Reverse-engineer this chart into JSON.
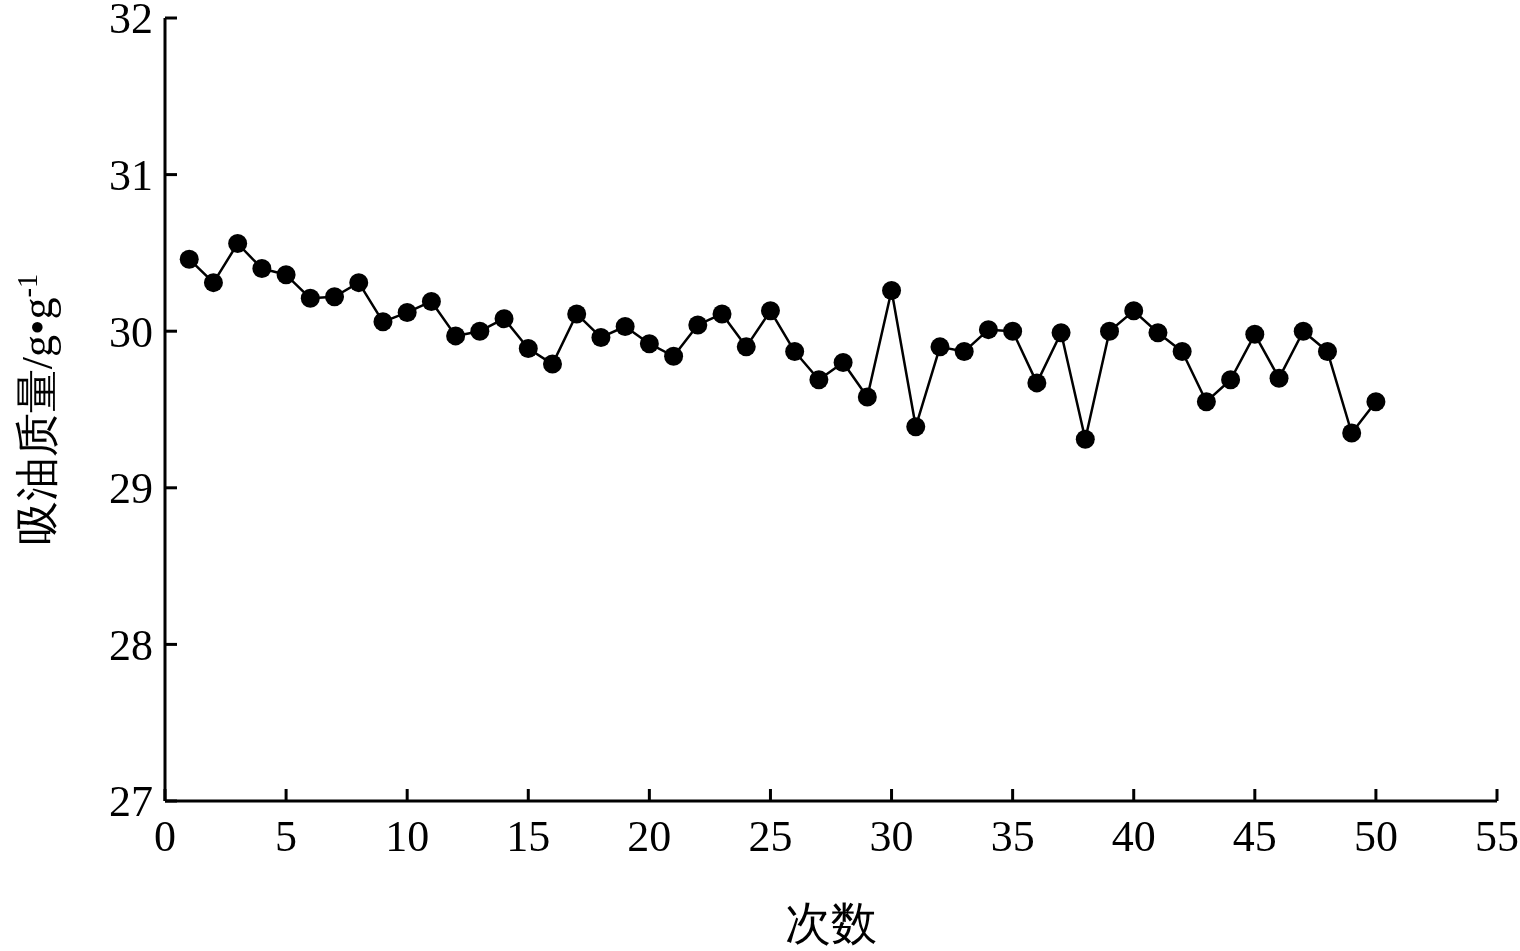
{
  "chart_data": {
    "type": "line",
    "xlabel": "次数",
    "ylabel": "吸油质量/g•g$^{-1}$",
    "x": [
      1,
      2,
      3,
      4,
      5,
      6,
      7,
      8,
      9,
      10,
      11,
      12,
      13,
      14,
      15,
      16,
      17,
      18,
      19,
      20,
      21,
      22,
      23,
      24,
      25,
      26,
      27,
      28,
      29,
      30,
      31,
      32,
      33,
      34,
      35,
      36,
      37,
      38,
      39,
      40,
      41,
      42,
      43,
      44,
      45,
      46,
      47,
      48,
      49,
      50
    ],
    "series": [
      {
        "color": "#000000",
        "values": [
          30.46,
          30.31,
          30.56,
          30.4,
          30.36,
          30.21,
          30.22,
          30.31,
          30.06,
          30.12,
          30.19,
          29.97,
          30.0,
          30.08,
          29.89,
          29.79,
          30.11,
          29.96,
          30.03,
          29.92,
          29.84,
          30.04,
          30.11,
          29.9,
          30.13,
          29.87,
          29.69,
          29.8,
          29.58,
          30.26,
          29.39,
          29.9,
          29.87,
          30.01,
          30.0,
          29.67,
          29.99,
          29.31,
          30.0,
          30.13,
          29.99,
          29.87,
          29.55,
          29.69,
          29.98,
          29.7,
          30.0,
          29.87,
          29.35,
          29.55
        ]
      }
    ],
    "xlim": [
      0,
      55
    ],
    "xticks": [
      0,
      5,
      10,
      15,
      20,
      25,
      30,
      35,
      40,
      45,
      50,
      55
    ],
    "ylim": [
      27,
      32
    ],
    "yticks": [
      27,
      28,
      29,
      30,
      31,
      32
    ],
    "grid": false,
    "marker": "circle",
    "line_style": "solid"
  }
}
